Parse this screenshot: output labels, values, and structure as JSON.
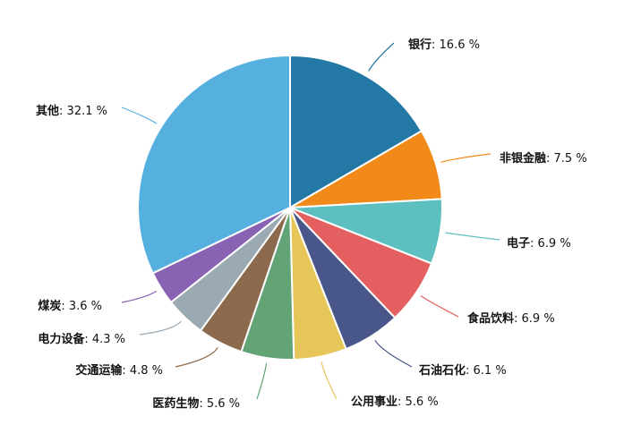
{
  "chart_data": {
    "type": "pie",
    "title": "",
    "start_at": "12 o'clock",
    "direction": "clockwise",
    "slices": [
      {
        "name": "银行",
        "value": 16.6,
        "label": "16.6 %",
        "color": "#2478a5"
      },
      {
        "name": "非银金融",
        "value": 7.5,
        "label": "7.5 %",
        "color": "#f28a1a"
      },
      {
        "name": "电子",
        "value": 6.9,
        "label": "6.9 %",
        "color": "#5dbfc0"
      },
      {
        "name": "食品饮料",
        "value": 6.9,
        "label": "6.9 %",
        "color": "#e45f5f"
      },
      {
        "name": "石油石化",
        "value": 6.1,
        "label": "6.1 %",
        "color": "#48568a"
      },
      {
        "name": "公用事业",
        "value": 5.6,
        "label": "5.6 %",
        "color": "#e6c659"
      },
      {
        "name": "医药生物",
        "value": 5.6,
        "label": "5.6 %",
        "color": "#63a477"
      },
      {
        "name": "交通运输",
        "value": 4.8,
        "label": "4.8 %",
        "color": "#8c6a4d"
      },
      {
        "name": "电力设备",
        "value": 4.3,
        "label": "4.3 %",
        "color": "#9ba9b3"
      },
      {
        "name": "煤炭",
        "value": 3.6,
        "label": "3.6 %",
        "color": "#8a62b3"
      },
      {
        "name": "其他",
        "value": 32.1,
        "label": "32.1 %",
        "color": "#55b0e0"
      }
    ]
  }
}
